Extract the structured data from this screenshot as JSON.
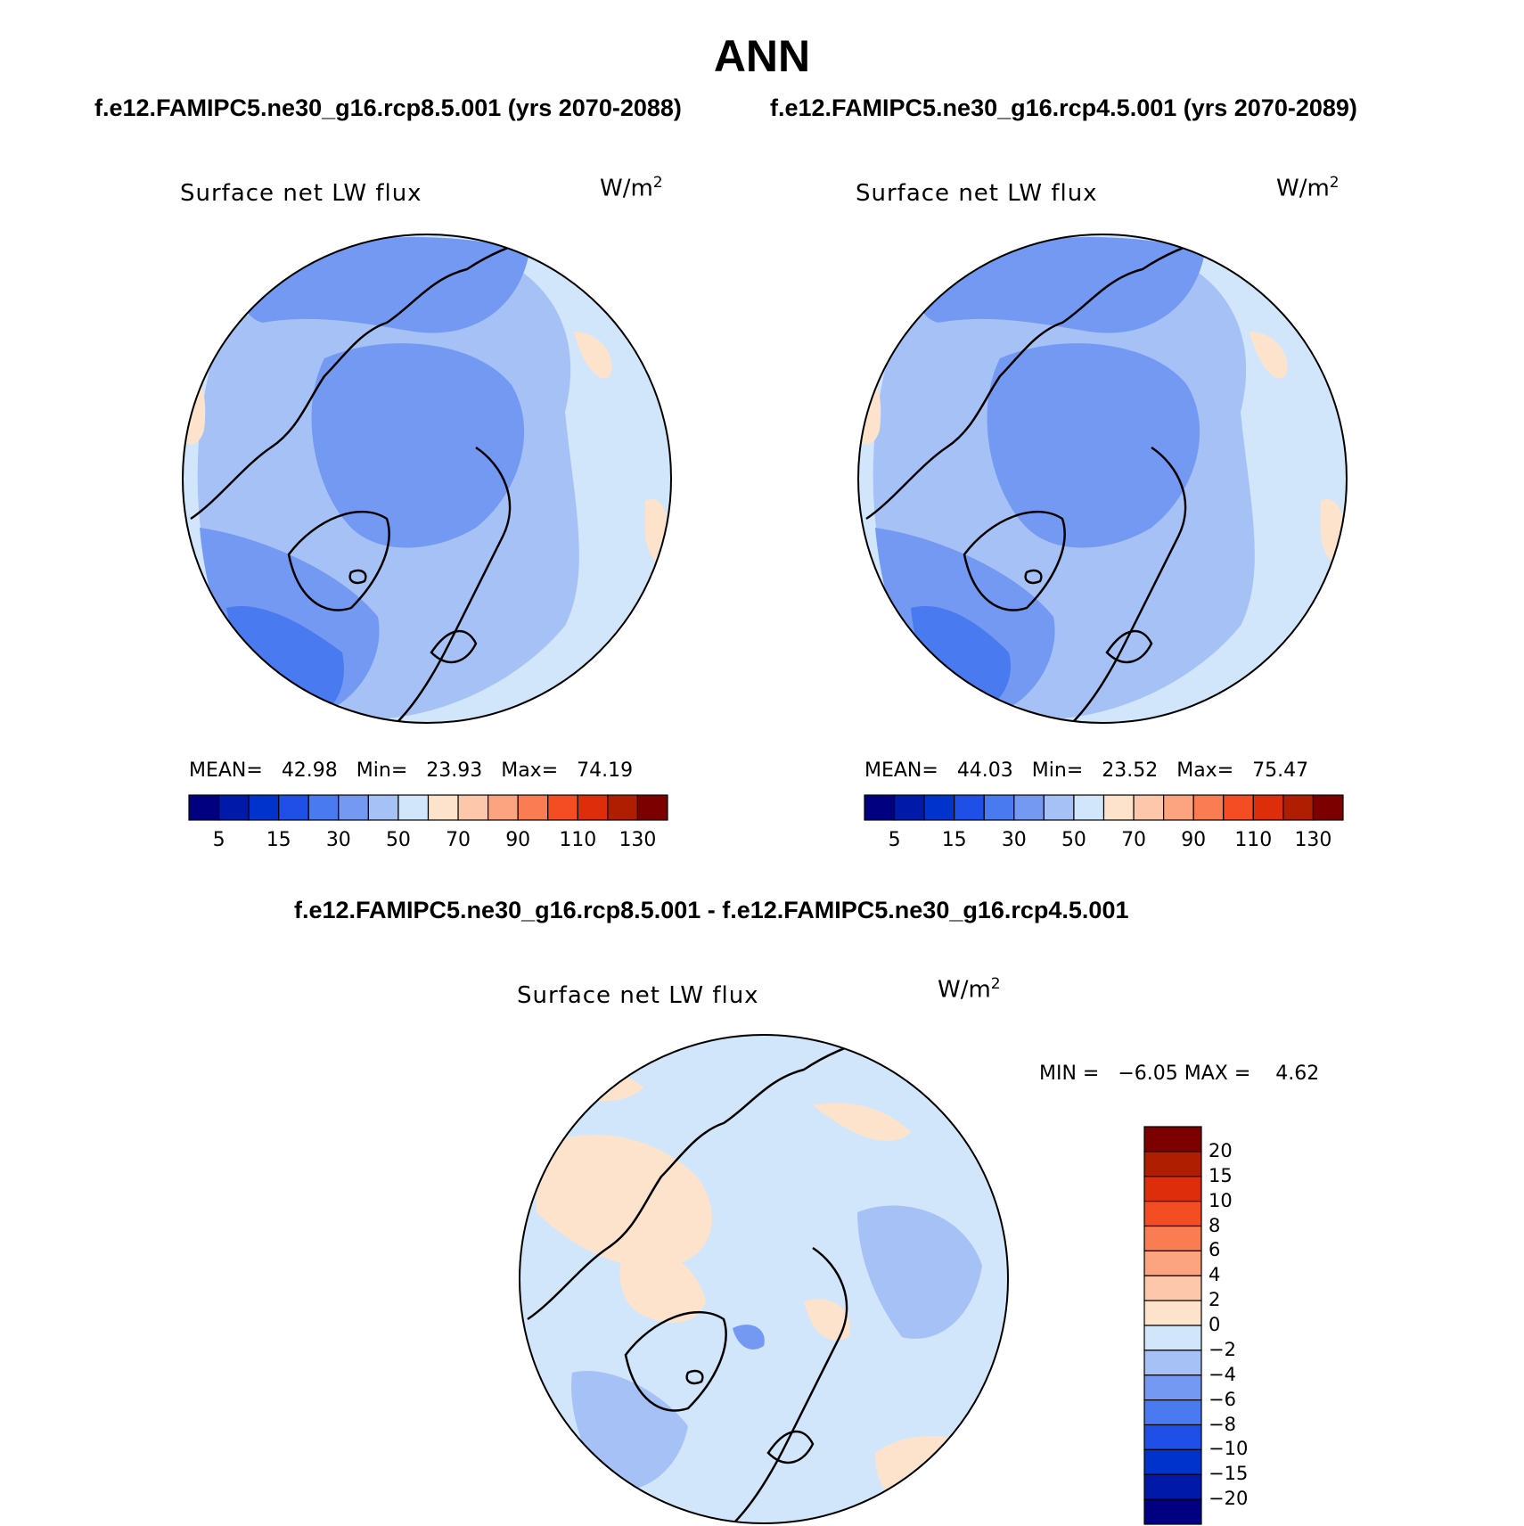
{
  "title": "ANN",
  "subtitle_left": "f.e12.FAMIPC5.ne30_g16.rcp8.5.001 (yrs 2070-2088)",
  "subtitle_right": "f.e12.FAMIPC5.ne30_g16.rcp4.5.001 (yrs 2070-2089)",
  "diff_title": "f.e12.FAMIPC5.ne30_g16.rcp8.5.001 - f.e12.FAMIPC5.ne30_g16.rcp4.5.001",
  "panels": [
    {
      "variable": "Surface net LW flux",
      "units": "W/m",
      "units_exp": "2",
      "mean_label": "MEAN=",
      "mean": "42.98",
      "min_label": "Min=",
      "min": "23.93",
      "max_label": "Max=",
      "max": "74.19"
    },
    {
      "variable": "Surface net LW flux",
      "units": "W/m",
      "units_exp": "2",
      "mean_label": "MEAN=",
      "mean": "44.03",
      "min_label": "Min=",
      "min": "23.52",
      "max_label": "Max=",
      "max": "75.47"
    }
  ],
  "diff_panel": {
    "variable": "Surface net LW flux",
    "units": "W/m",
    "units_exp": "2",
    "min_label": "MIN =",
    "min": "−6.05",
    "max_label": "MAX =",
    "max": "4.62"
  },
  "colorbar_abs": {
    "colors": [
      "#000080",
      "#0019a8",
      "#0033cc",
      "#1f4fe6",
      "#4a7aef",
      "#7399f2",
      "#a6c1f6",
      "#d2e6fb",
      "#fde3cc",
      "#fcc7aa",
      "#fba47f",
      "#f97c52",
      "#f44d24",
      "#de2d0a",
      "#b01e02",
      "#7d0000"
    ],
    "ticks": [
      "5",
      "15",
      "30",
      "50",
      "70",
      "90",
      "110",
      "130"
    ]
  },
  "colorbar_diff": {
    "colors": [
      "#7d0000",
      "#b01e02",
      "#de2d0a",
      "#f44d24",
      "#f97c52",
      "#fba47f",
      "#fcc7aa",
      "#fde3cc",
      "#d2e6fb",
      "#a6c1f6",
      "#7399f2",
      "#4a7aef",
      "#1f4fe6",
      "#0033cc",
      "#0019a8",
      "#000080"
    ],
    "ticks": [
      "20",
      "15",
      "10",
      "8",
      "6",
      "4",
      "2",
      "0",
      "−2",
      "−4",
      "−6",
      "−8",
      "−10",
      "−15",
      "−20"
    ]
  }
}
